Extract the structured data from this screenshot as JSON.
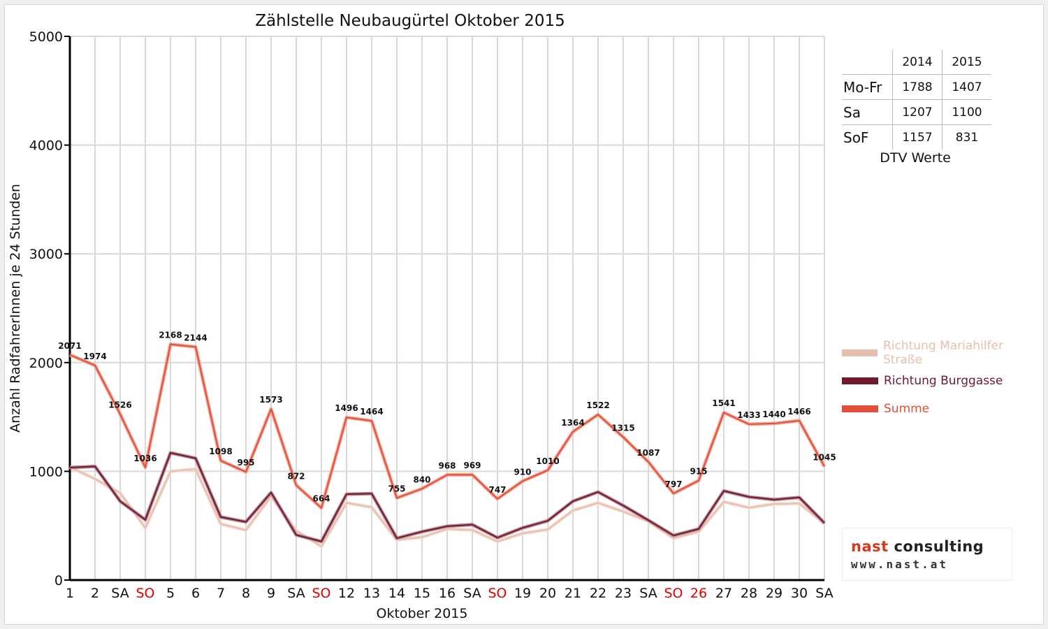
{
  "chart_data": {
    "type": "line",
    "title": "Zählstelle Neubaugürtel Oktober 2015",
    "xlabel": "Oktober 2015",
    "ylabel": "Anzahl RadfahrerInnen je 24 Stunden",
    "ylim": [
      0,
      5000
    ],
    "yticks": [
      0,
      1000,
      2000,
      3000,
      4000,
      5000
    ],
    "grid": true,
    "legend_position": "right",
    "categories": [
      "1",
      "2",
      "SA",
      "SO",
      "5",
      "6",
      "7",
      "8",
      "9",
      "SA",
      "SO",
      "12",
      "13",
      "14",
      "15",
      "16",
      "SA",
      "SO",
      "19",
      "20",
      "21",
      "22",
      "23",
      "SA",
      "SO",
      "26",
      "27",
      "28",
      "29",
      "30",
      "SA"
    ],
    "red_categories": [
      3,
      10,
      17,
      24,
      25
    ],
    "series": [
      {
        "name": "Richtung Mariahilfer Straße",
        "color": "#e8bfae",
        "values": [
          1040,
          930,
          800,
          480,
          1000,
          1020,
          515,
          460,
          770,
          455,
          310,
          710,
          670,
          370,
          395,
          470,
          460,
          355,
          430,
          465,
          640,
          710,
          630,
          540,
          385,
          445,
          720,
          665,
          700,
          705,
          520
        ]
      },
      {
        "name": "Richtung Burggasse",
        "color": "#6e1a2c",
        "values": [
          1035,
          1045,
          725,
          555,
          1170,
          1120,
          580,
          535,
          805,
          415,
          355,
          790,
          795,
          385,
          445,
          495,
          510,
          390,
          480,
          545,
          725,
          810,
          685,
          550,
          410,
          470,
          820,
          765,
          740,
          760,
          525
        ]
      },
      {
        "name": "Summe",
        "color": "#e0503a",
        "values": [
          2071,
          1974,
          1526,
          1036,
          2168,
          2144,
          1098,
          995,
          1573,
          872,
          664,
          1496,
          1464,
          755,
          840,
          968,
          969,
          747,
          910,
          1010,
          1364,
          1522,
          1315,
          1087,
          797,
          915,
          1541,
          1433,
          1440,
          1466,
          1045
        ]
      }
    ],
    "data_labels": [
      "2071",
      "1974",
      "1526",
      "1036",
      "2168",
      "2144",
      "1098",
      "995",
      "1573",
      "872",
      "664",
      "1496",
      "1464",
      "755",
      "840",
      "968",
      "969",
      "747",
      "910",
      "1010",
      "1364",
      "1522",
      "1315",
      "1087",
      "797",
      "915",
      "1541",
      "1433",
      "1440",
      "1466",
      "1045"
    ]
  },
  "dtv_table": {
    "headers": [
      "2014",
      "2015"
    ],
    "rows": [
      {
        "label": "Mo-Fr",
        "v2014": "1788",
        "v2015": "1407"
      },
      {
        "label": "Sa",
        "v2014": "1207",
        "v2015": "1100"
      },
      {
        "label": "SoF",
        "v2014": "1157",
        "v2015": "831"
      }
    ],
    "caption": "DTV Werte"
  },
  "legend": [
    {
      "label": "Richtung Mariahilfer Straße",
      "color": "#e8bfae"
    },
    {
      "label": "Richtung Burggasse",
      "color": "#6e1a2c"
    },
    {
      "label": "Summe",
      "color": "#e0503a"
    }
  ],
  "logo": {
    "name_part1": "nast",
    "name_part2": "consulting",
    "url": "www.nast.at"
  }
}
